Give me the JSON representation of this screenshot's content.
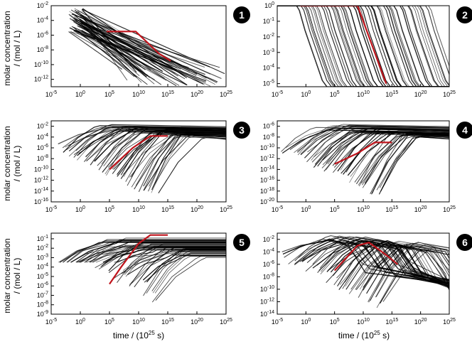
{
  "figure": {
    "ylabel_line1": "molar concentration",
    "ylabel_line2": "/ (mol / L)",
    "xlabel": "time / (10",
    "xlabel_exp": "25",
    "xlabel_unit": " s)"
  },
  "colors": {
    "curve": "#000000",
    "highlight": "#c0141c",
    "frame": "#000000",
    "badge": "#000000"
  },
  "chart_data": [
    {
      "id": "1",
      "type": "line",
      "yscale": "log",
      "xscale": "log",
      "x_ticks": [
        "10-5",
        "100",
        "105",
        "1010",
        "1015",
        "1020",
        "1025"
      ],
      "x_ticks_exp": [
        -5,
        0,
        5,
        10,
        15,
        20,
        25
      ],
      "y_ticks_exp": [
        -12,
        -10,
        -8,
        -6,
        -4,
        -2
      ],
      "xlim_exp": [
        -5,
        25
      ],
      "ylim_exp": [
        -13,
        -2
      ],
      "curves": {
        "count": 60,
        "start_range": [
          -2,
          0.5
        ],
        "end_x": [
          17,
          24
        ],
        "start_y": [
          -2.5,
          -5.8
        ],
        "end_y": [
          -9.5,
          -13
        ]
      },
      "highlight": [
        [
          4.5,
          -5.5
        ],
        [
          9.5,
          -5.5
        ],
        [
          11.5,
          -7
        ],
        [
          13.5,
          -8.5
        ],
        [
          15.5,
          -9.5
        ]
      ]
    },
    {
      "id": "2",
      "type": "line",
      "yscale": "log",
      "xscale": "log",
      "x_ticks_exp": [
        -5,
        0,
        5,
        10,
        15,
        20,
        25
      ],
      "y_ticks_exp": [
        -5,
        -4,
        -3,
        -2,
        -1,
        0
      ],
      "xlim_exp": [
        -5,
        25
      ],
      "ylim_exp": [
        -5.2,
        0
      ],
      "curves": {
        "count": 60,
        "drop_range": [
          -2,
          21
        ]
      },
      "highlight": [
        [
          -1,
          0
        ],
        [
          9,
          0
        ],
        [
          10,
          -1
        ],
        [
          12,
          -3
        ],
        [
          14,
          -5
        ]
      ]
    },
    {
      "id": "3",
      "type": "line",
      "yscale": "log",
      "xscale": "log",
      "x_ticks_exp": [
        -5,
        0,
        5,
        10,
        15,
        20,
        25
      ],
      "y_ticks_exp": [
        -16,
        -14,
        -12,
        -10,
        -8,
        -6,
        -4,
        -2
      ],
      "xlim_exp": [
        -5,
        25
      ],
      "ylim_exp": [
        -16,
        -1
      ],
      "curves": {
        "count": 55,
        "start_range": [
          -5,
          15
        ]
      },
      "highlight": [
        [
          5,
          -10
        ],
        [
          9,
          -6
        ],
        [
          12,
          -3.8
        ],
        [
          15,
          -3.8
        ]
      ]
    },
    {
      "id": "4",
      "type": "line",
      "yscale": "log",
      "xscale": "log",
      "x_ticks_exp": [
        -5,
        0,
        5,
        10,
        15,
        20,
        25
      ],
      "y_ticks_exp": [
        -20,
        -18,
        -16,
        -14,
        -12,
        -10,
        -8,
        -6
      ],
      "xlim_exp": [
        -5,
        25
      ],
      "ylim_exp": [
        -20,
        -5
      ],
      "curves": {
        "count": 55,
        "start_range": [
          -5,
          15
        ]
      },
      "highlight": [
        [
          5,
          -13
        ],
        [
          9,
          -11
        ],
        [
          12,
          -9
        ],
        [
          15,
          -9
        ]
      ]
    },
    {
      "id": "5",
      "type": "line",
      "yscale": "log",
      "xscale": "log",
      "x_ticks_exp": [
        -5,
        0,
        5,
        10,
        15,
        20,
        25
      ],
      "y_ticks_exp": [
        -9,
        -8,
        -7,
        -6,
        -5,
        -4,
        -3,
        -2,
        -1
      ],
      "xlim_exp": [
        -5,
        25
      ],
      "ylim_exp": [
        -9,
        -0.4
      ],
      "curves": {
        "count": 55,
        "start_range": [
          -5,
          15
        ]
      },
      "highlight": [
        [
          5,
          -5.8
        ],
        [
          7,
          -4
        ],
        [
          10,
          -1.5
        ],
        [
          12,
          -0.6
        ],
        [
          15,
          -0.6
        ]
      ]
    },
    {
      "id": "6",
      "type": "line",
      "yscale": "log",
      "xscale": "log",
      "x_ticks_exp": [
        -5,
        0,
        5,
        10,
        15,
        20,
        25
      ],
      "y_ticks_exp": [
        -14,
        -12,
        -10,
        -8,
        -6,
        -4,
        -2
      ],
      "xlim_exp": [
        -5,
        25
      ],
      "ylim_exp": [
        -14,
        -1
      ],
      "curves": {
        "count": 55,
        "start_range": [
          -5,
          15
        ]
      },
      "highlight": [
        [
          5,
          -7
        ],
        [
          9,
          -3
        ],
        [
          11,
          -2.5
        ],
        [
          14,
          -4.5
        ],
        [
          16,
          -6
        ]
      ]
    }
  ]
}
